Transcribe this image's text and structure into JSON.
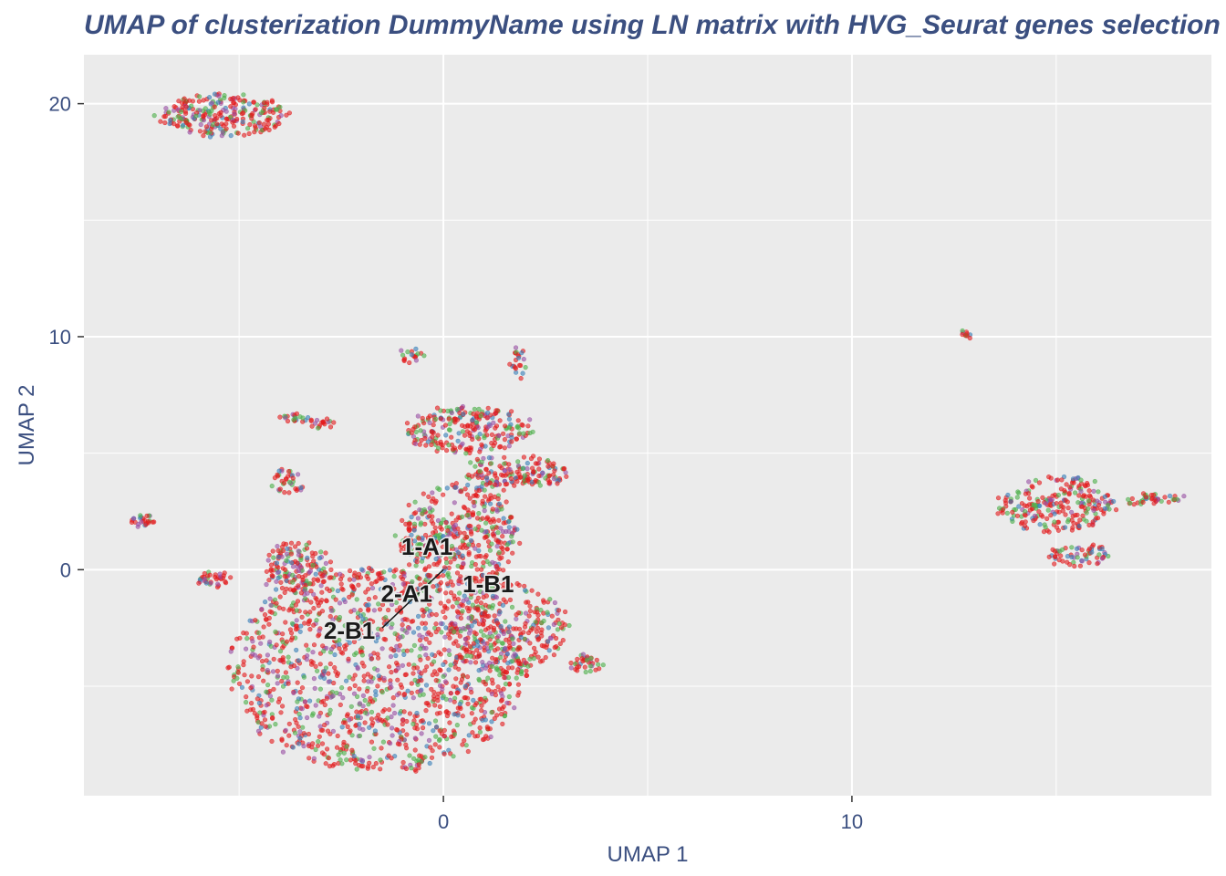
{
  "chart_data": {
    "type": "scatter",
    "title": "UMAP of clusterization DummyName using LN matrix with HVG_Seurat genes selection",
    "xlabel": "UMAP 1",
    "ylabel": "UMAP 2",
    "xlim": [
      -8.8,
      18.8
    ],
    "ylim": [
      -9.7,
      22.1
    ],
    "x_ticks": [
      0,
      10
    ],
    "y_ticks": [
      0,
      10,
      20
    ],
    "x_tick_labels": [
      "0",
      "10"
    ],
    "y_tick_labels": [
      "0",
      "10",
      "20"
    ],
    "grid": true,
    "legend": "none",
    "point_colors": [
      "#e31a1c",
      "#4daf4a",
      "#984ea3",
      "#377eb8"
    ],
    "clusters": [
      {
        "name": "main-blob",
        "cx": -1.6,
        "cy": -4.3,
        "rx": 3.6,
        "ry": 4.4,
        "n": 1300
      },
      {
        "name": "upper-body",
        "cx": 0.4,
        "cy": 1.5,
        "rx": 1.5,
        "ry": 2.2,
        "n": 420
      },
      {
        "name": "neck-top",
        "cx": 0.6,
        "cy": 6.0,
        "rx": 1.6,
        "ry": 1.0,
        "n": 240
      },
      {
        "name": "right-arm",
        "cx": 1.8,
        "cy": 4.2,
        "rx": 1.3,
        "ry": 0.7,
        "n": 160
      },
      {
        "name": "right-lobe",
        "cx": 1.6,
        "cy": -2.5,
        "rx": 1.4,
        "ry": 2.0,
        "n": 280
      },
      {
        "name": "left-lobe",
        "cx": -3.6,
        "cy": 0.1,
        "rx": 0.8,
        "ry": 1.1,
        "n": 150
      },
      {
        "name": "top-left-island",
        "cx": -5.4,
        "cy": 19.5,
        "rx": 1.6,
        "ry": 0.9,
        "n": 260
      },
      {
        "name": "right-island",
        "cx": 15.0,
        "cy": 2.8,
        "rx": 1.5,
        "ry": 1.2,
        "n": 240
      },
      {
        "name": "right-island-tail",
        "cx": 15.6,
        "cy": 0.6,
        "rx": 0.8,
        "ry": 0.45,
        "n": 60
      },
      {
        "name": "right-island-arm",
        "cx": 17.4,
        "cy": 3.0,
        "rx": 0.7,
        "ry": 0.25,
        "n": 40
      },
      {
        "name": "small-far-left",
        "cx": -7.4,
        "cy": 2.1,
        "rx": 0.35,
        "ry": 0.25,
        "n": 25
      },
      {
        "name": "small-left",
        "cx": -5.6,
        "cy": -0.4,
        "rx": 0.45,
        "ry": 0.3,
        "n": 35
      },
      {
        "name": "small-mid-left",
        "cx": -3.6,
        "cy": 6.5,
        "rx": 0.4,
        "ry": 0.15,
        "n": 20
      },
      {
        "name": "small-mid",
        "cx": -3.0,
        "cy": 6.3,
        "rx": 0.3,
        "ry": 0.15,
        "n": 18
      },
      {
        "name": "small-upper",
        "cx": -0.8,
        "cy": 9.2,
        "rx": 0.25,
        "ry": 0.3,
        "n": 18
      },
      {
        "name": "small-upper-right",
        "cx": 1.8,
        "cy": 8.8,
        "rx": 0.2,
        "ry": 0.7,
        "n": 22
      },
      {
        "name": "small-bottom-right",
        "cx": 3.5,
        "cy": -4.0,
        "rx": 0.4,
        "ry": 0.35,
        "n": 35
      },
      {
        "name": "small-left-upper",
        "cx": -3.8,
        "cy": 3.8,
        "rx": 0.4,
        "ry": 0.5,
        "n": 35
      },
      {
        "name": "far-right-dot",
        "cx": 12.8,
        "cy": 10.1,
        "rx": 0.08,
        "ry": 0.05,
        "n": 10
      }
    ],
    "labels": [
      {
        "text": "1-A1",
        "x": -0.4,
        "y": 0.9
      },
      {
        "text": "1-B1",
        "x": 1.1,
        "y": -0.7
      },
      {
        "text": "2-A1",
        "x": -0.9,
        "y": -1.1
      },
      {
        "text": "2-B1",
        "x": -2.3,
        "y": -2.7
      }
    ],
    "label_lines": [
      {
        "x1": 0.0,
        "y1": 0.0,
        "x2": -1.5,
        "y2": -2.5
      }
    ]
  }
}
